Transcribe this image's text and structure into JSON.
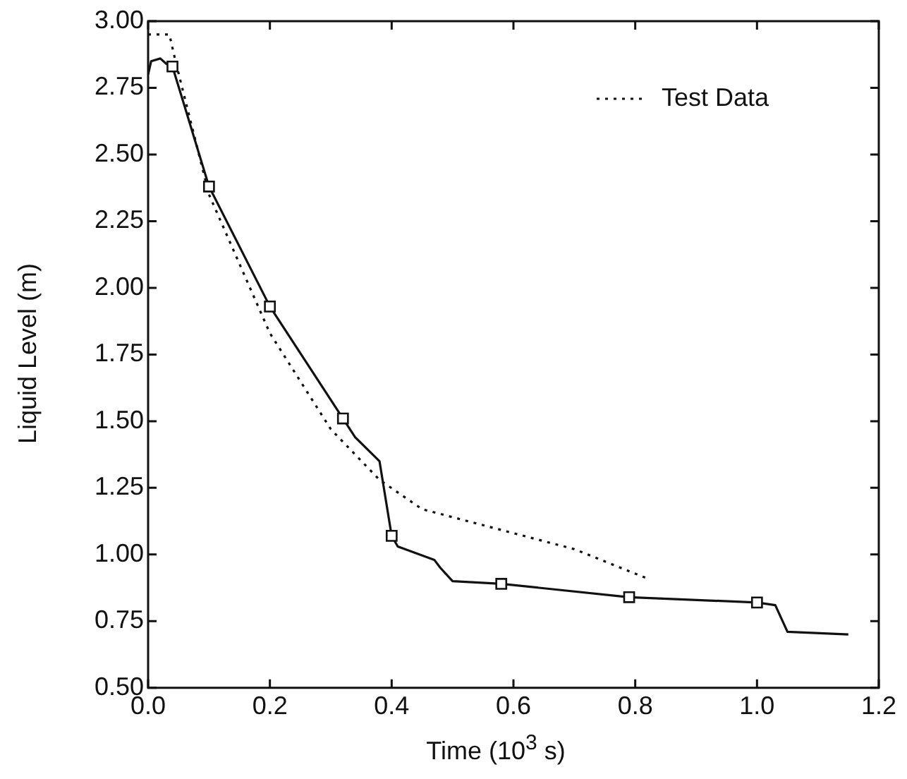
{
  "chart_data": {
    "type": "line",
    "xlabel": "Time (10$^{3}$ s)",
    "ylabel": "Liquid Level (m)",
    "xlim": [
      0,
      1.2
    ],
    "ylim": [
      0.5,
      3.0
    ],
    "xticks": [
      {
        "value": 0,
        "label": "0.0"
      },
      {
        "value": 0.2,
        "label": "0.2"
      },
      {
        "value": 0.4,
        "label": "0.4"
      },
      {
        "value": 0.6,
        "label": "0.6"
      },
      {
        "value": 0.8,
        "label": "0.8"
      },
      {
        "value": 1,
        "label": "1.0"
      },
      {
        "value": 1.2,
        "label": "1.2"
      }
    ],
    "yticks": [
      {
        "value": 0.5,
        "label": "0.50"
      },
      {
        "value": 0.75,
        "label": "0.75"
      },
      {
        "value": 1,
        "label": "1.00"
      },
      {
        "value": 1.25,
        "label": "1.25"
      },
      {
        "value": 1.5,
        "label": "1.50"
      },
      {
        "value": 1.75,
        "label": "1.75"
      },
      {
        "value": 2,
        "label": "2.00"
      },
      {
        "value": 2.25,
        "label": "2.25"
      },
      {
        "value": 2.5,
        "label": "2.50"
      },
      {
        "value": 2.75,
        "label": "2.75"
      },
      {
        "value": 3,
        "label": "3.00"
      }
    ],
    "grid": false,
    "legend": "top right",
    "series": [
      {
        "type": "scatter",
        "color": "#111111",
        "marker": "square",
        "x": [
          0.04,
          0.1,
          0.2,
          0.32,
          0.4,
          0.58,
          0.79,
          1.0
        ],
        "values": [
          2.83,
          2.38,
          1.93,
          1.51,
          1.07,
          0.89,
          0.84,
          0.82
        ]
      },
      {
        "color": "#111111",
        "marker": "none",
        "line_style": "solid",
        "x": [
          0.0,
          0.005,
          0.02,
          0.03,
          0.04,
          0.1,
          0.2,
          0.32,
          0.34,
          0.38,
          0.4,
          0.41,
          0.47,
          0.48,
          0.5,
          0.58,
          0.79,
          1.0,
          1.03,
          1.05,
          1.15
        ],
        "values": [
          2.8,
          2.85,
          2.86,
          2.84,
          2.83,
          2.38,
          1.93,
          1.51,
          1.44,
          1.35,
          1.07,
          1.03,
          0.98,
          0.95,
          0.9,
          0.89,
          0.84,
          0.82,
          0.81,
          0.71,
          0.7
        ]
      },
      {
        "name": "Test Data",
        "color": "#111111",
        "marker": "none",
        "line_style": "dotted",
        "x": [
          0.0,
          0.035,
          0.045,
          0.1,
          0.2,
          0.3,
          0.38,
          0.45,
          0.55,
          0.7,
          0.82
        ],
        "values": [
          2.95,
          2.95,
          2.85,
          2.35,
          1.83,
          1.47,
          1.28,
          1.17,
          1.11,
          1.02,
          0.91
        ]
      }
    ]
  }
}
